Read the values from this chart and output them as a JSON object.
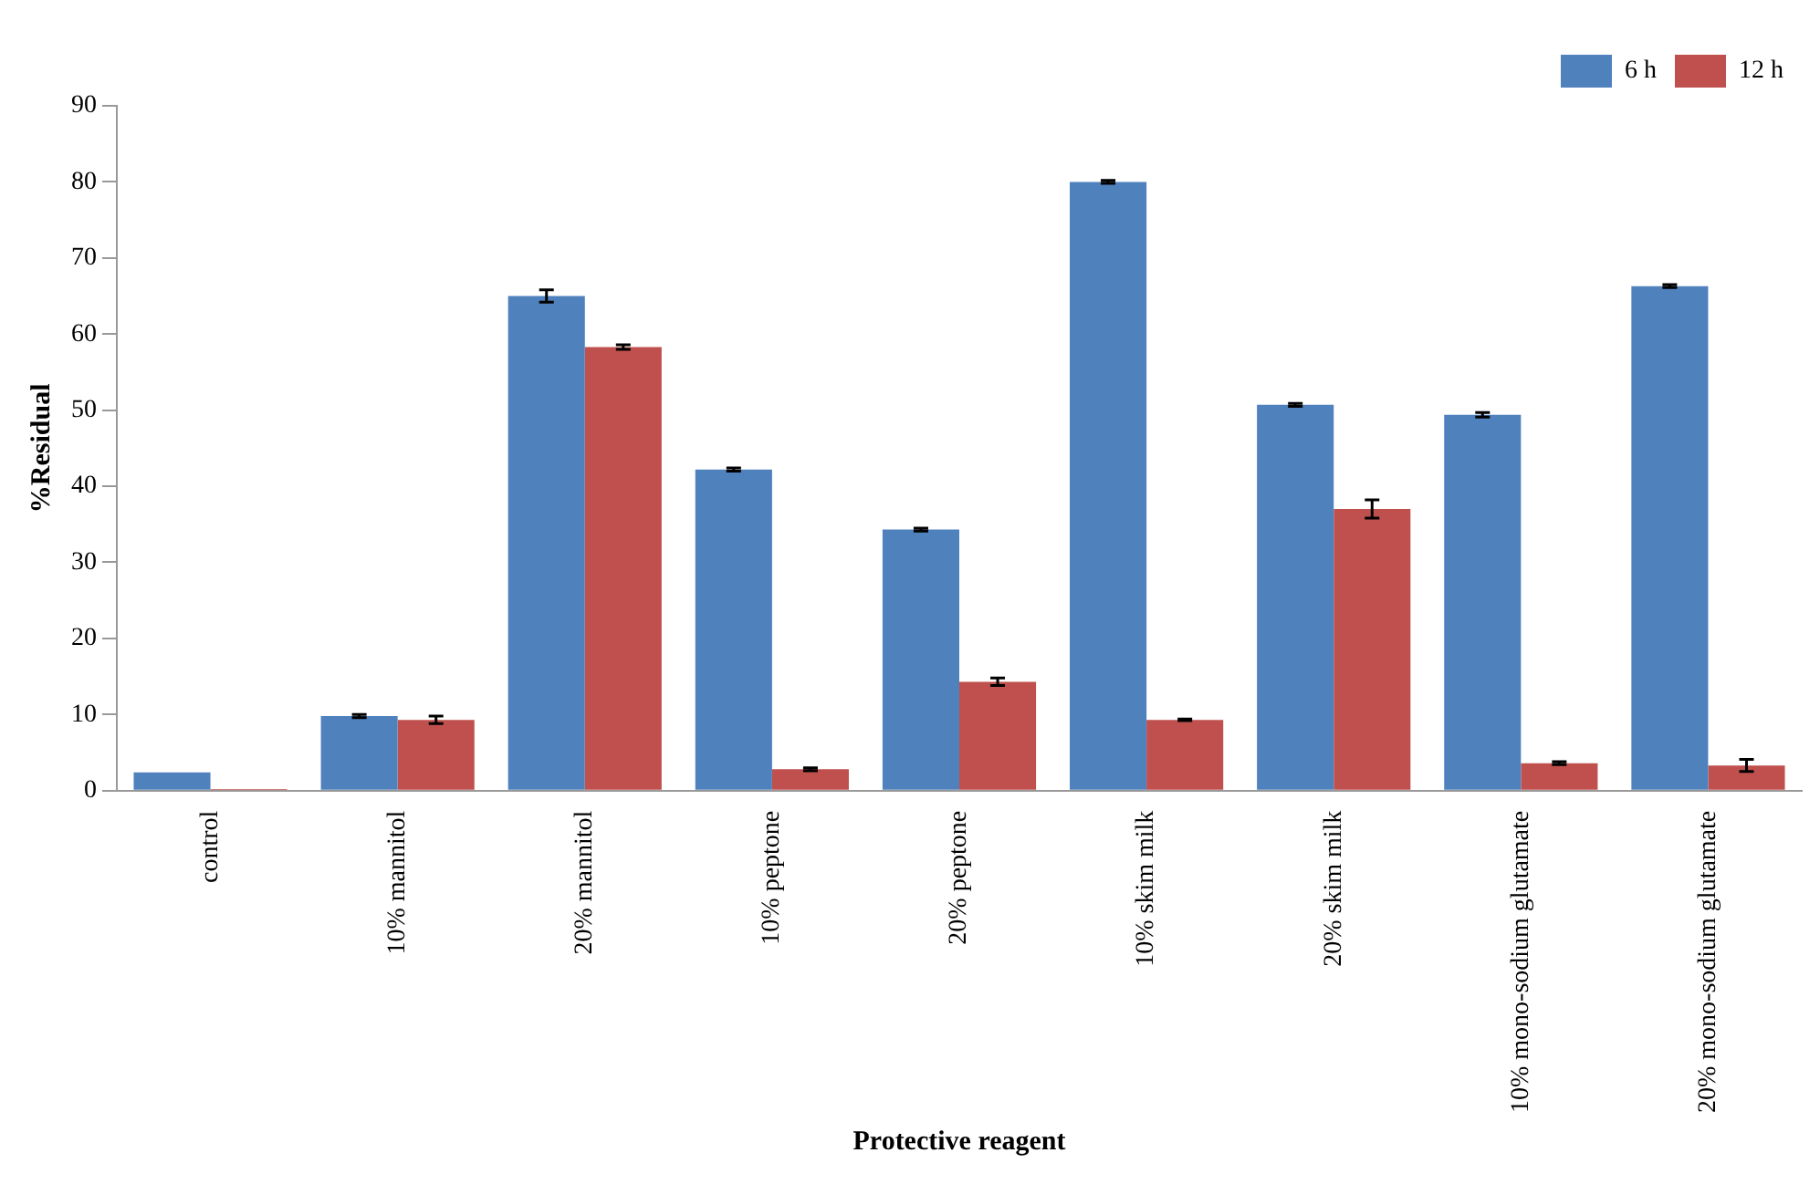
{
  "chart_data": {
    "type": "bar",
    "xlabel": "Protective reagent",
    "ylabel": "%Residual",
    "categories": [
      "control",
      "10% mannitol",
      "20% mannitol",
      "10% peptone",
      "20% peptone",
      "10% skim milk",
      "20% skim milk",
      "10% mono-sodium glutamate",
      "20% mono-sodium glutamate"
    ],
    "series": [
      {
        "name": "6 h",
        "color": "#4f81bd",
        "values": [
          2.4,
          9.8,
          65,
          42.2,
          34.3,
          80,
          50.7,
          49.4,
          66.3
        ],
        "errors": [
          null,
          0.2,
          0.8,
          0.2,
          0.2,
          0.2,
          0.2,
          0.3,
          0.2
        ]
      },
      {
        "name": "12 h",
        "color": "#c0504d",
        "values": [
          0.2,
          9.3,
          58.3,
          2.8,
          14.3,
          9.3,
          37,
          3.6,
          3.3
        ],
        "errors": [
          null,
          0.5,
          0.3,
          0.2,
          0.5,
          0.1,
          1.2,
          0.2,
          0.8
        ]
      }
    ],
    "ylim": [
      0,
      90
    ],
    "yticks": [
      0,
      10,
      20,
      30,
      40,
      50,
      60,
      70,
      80,
      90
    ],
    "grid": false,
    "legend": "top right"
  }
}
